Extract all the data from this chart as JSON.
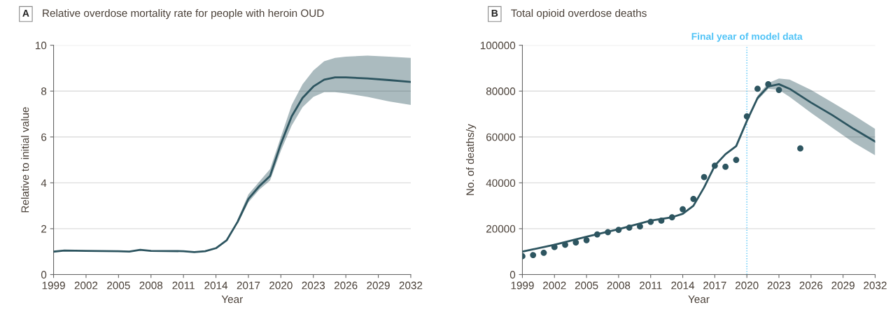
{
  "chart_data": [
    {
      "type": "line",
      "title": "Relative overdose mortality rate for people with heroin OUD",
      "annotations": [
        "A"
      ],
      "xlabel": "Year",
      "ylabel": "Relative to initial value",
      "xlim": [
        1999,
        2032
      ],
      "xticks": [
        1999,
        2002,
        2005,
        2008,
        2011,
        2014,
        2017,
        2020,
        2023,
        2026,
        2029,
        2032
      ],
      "ylim": [
        0,
        10
      ],
      "yticks": [
        0,
        2,
        4,
        6,
        8,
        10
      ],
      "grid": "y",
      "series": [
        {
          "color": "#2d5560",
          "x": [
            1999,
            2000,
            2002,
            2005,
            2006,
            2007,
            2008,
            2011,
            2012,
            2013,
            2014,
            2015,
            2016,
            2017,
            2018,
            2019,
            2020,
            2021,
            2022,
            2023,
            2024,
            2025,
            2026,
            2028,
            2030,
            2032
          ],
          "values": [
            1.0,
            1.05,
            1.03,
            1.02,
            1.0,
            1.08,
            1.03,
            1.02,
            0.98,
            1.02,
            1.15,
            1.5,
            2.3,
            3.3,
            3.85,
            4.3,
            5.7,
            6.9,
            7.7,
            8.2,
            8.5,
            8.6,
            8.6,
            8.55,
            8.48,
            8.4
          ],
          "lower": [
            null,
            null,
            null,
            null,
            null,
            null,
            null,
            null,
            null,
            null,
            null,
            null,
            2.2,
            3.15,
            3.7,
            4.1,
            5.4,
            6.5,
            7.3,
            7.75,
            7.95,
            7.95,
            7.9,
            7.75,
            7.55,
            7.4
          ],
          "upper": [
            null,
            null,
            null,
            null,
            null,
            null,
            null,
            null,
            null,
            null,
            null,
            null,
            2.4,
            3.5,
            4.05,
            4.6,
            6.0,
            7.4,
            8.3,
            8.9,
            9.3,
            9.45,
            9.5,
            9.55,
            9.5,
            9.45
          ]
        }
      ]
    },
    {
      "type": "line",
      "title": "Total opioid overdose deaths",
      "annotations": [
        "B"
      ],
      "xlabel": "Year",
      "ylabel": "No. of deaths/y",
      "xlim": [
        1999,
        2032
      ],
      "xticks": [
        1999,
        2002,
        2005,
        2008,
        2011,
        2014,
        2017,
        2020,
        2023,
        2026,
        2029,
        2032
      ],
      "ylim": [
        0,
        100000
      ],
      "yticks": [
        0,
        20000,
        40000,
        60000,
        80000,
        100000
      ],
      "grid": "y",
      "ref_lines": [
        {
          "axis": "x",
          "value": 2020,
          "label": "Final year of model data",
          "color": "#4fc3f7",
          "line_style": "dotted"
        }
      ],
      "series": [
        {
          "color": "#2d5560",
          "x": [
            1999,
            2002,
            2005,
            2008,
            2011,
            2013,
            2014,
            2015,
            2016,
            2017,
            2018,
            2019,
            2020,
            2021,
            2022,
            2023,
            2024,
            2026,
            2028,
            2030,
            2032
          ],
          "values": [
            10000,
            13000,
            16500,
            19800,
            23500,
            25000,
            26500,
            30000,
            38000,
            47500,
            52500,
            56000,
            67000,
            77000,
            82000,
            83000,
            81000,
            75000,
            69500,
            63500,
            58000
          ],
          "lower": [
            null,
            null,
            null,
            null,
            null,
            null,
            null,
            null,
            null,
            null,
            null,
            null,
            null,
            76000,
            81000,
            80500,
            77500,
            70500,
            64000,
            57500,
            52000
          ],
          "upper": [
            null,
            null,
            null,
            null,
            null,
            null,
            null,
            null,
            null,
            null,
            null,
            null,
            null,
            78000,
            83500,
            85500,
            85000,
            80500,
            75000,
            69500,
            63500
          ]
        },
        {
          "type": "scatter",
          "color": "#2d5560",
          "marker": "circle",
          "x": [
            1999,
            2000,
            2001,
            2002,
            2003,
            2004,
            2005,
            2006,
            2007,
            2008,
            2009,
            2010,
            2011,
            2012,
            2013,
            2014,
            2015,
            2016,
            2017,
            2018,
            2019,
            2020,
            2021,
            2022,
            2023,
            2025
          ],
          "values": [
            8000,
            8500,
            9500,
            12000,
            13000,
            14000,
            15000,
            17500,
            18500,
            19500,
            20500,
            21000,
            23000,
            23500,
            25000,
            28500,
            33000,
            42500,
            47500,
            47000,
            50000,
            69000,
            81000,
            83000,
            80500,
            55000
          ]
        }
      ]
    }
  ]
}
